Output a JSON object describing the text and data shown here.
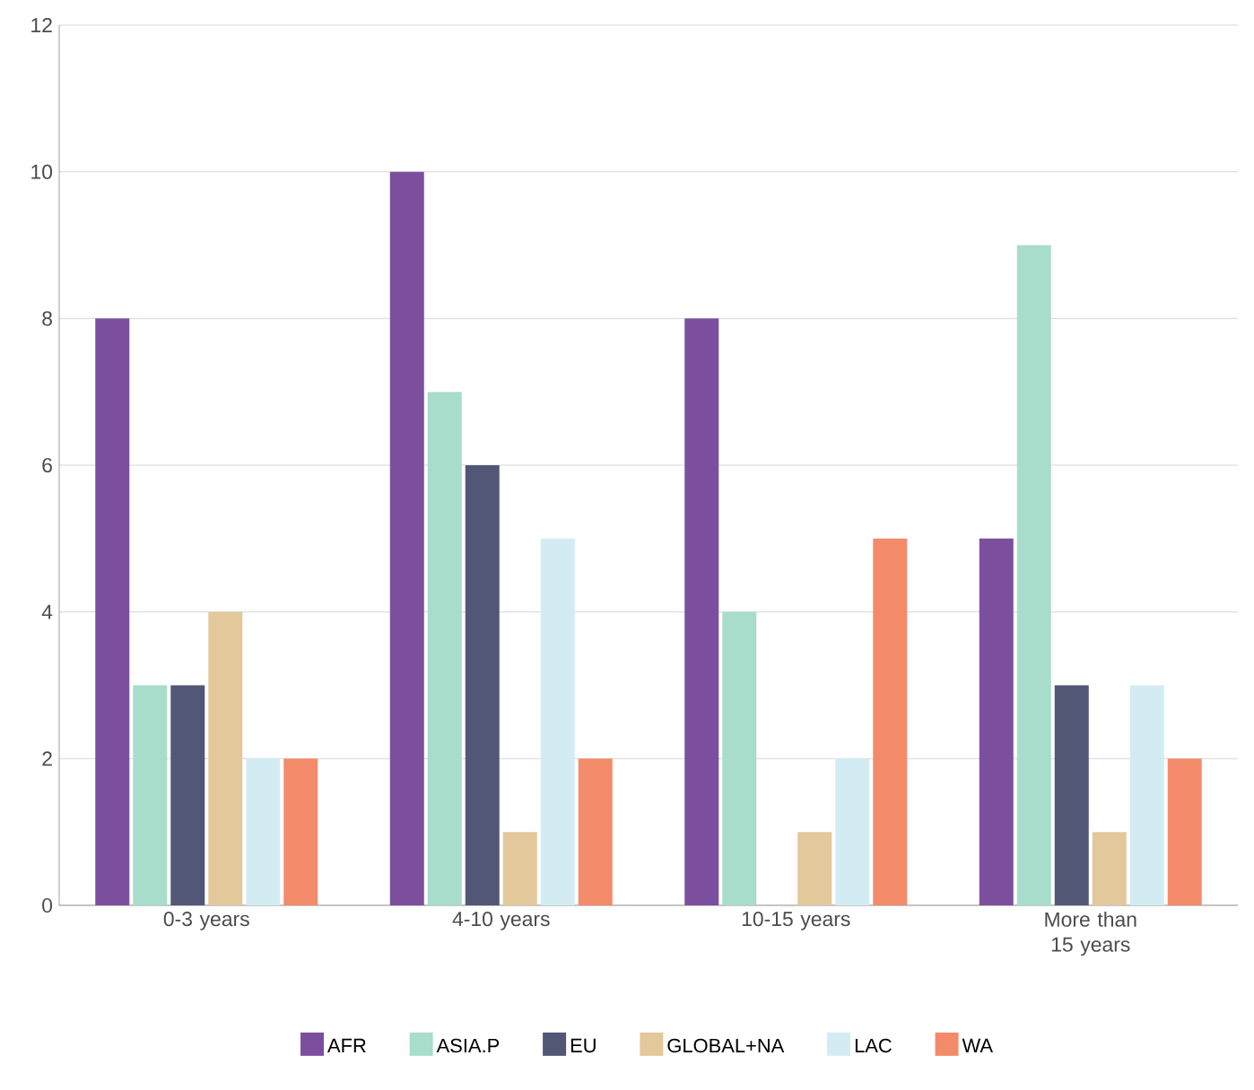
{
  "chart_data": {
    "type": "bar",
    "categories": [
      "0-3 years",
      "4-10 years",
      "10-15 years",
      "More than 15 years"
    ],
    "series": [
      {
        "name": "AFR",
        "color": "#7b4f9e",
        "values": [
          8,
          10,
          8,
          5
        ]
      },
      {
        "name": "ASIA.P",
        "color": "#a8dccb",
        "values": [
          3,
          7,
          4,
          9
        ]
      },
      {
        "name": "EU",
        "color": "#525775",
        "values": [
          3,
          6,
          null,
          3
        ]
      },
      {
        "name": "GLOBAL+NA",
        "color": "#e3c89b",
        "values": [
          4,
          1,
          1,
          1
        ]
      },
      {
        "name": "LAC",
        "color": "#d3ecf3",
        "values": [
          2,
          5,
          2,
          3
        ]
      },
      {
        "name": "WA",
        "color": "#f38b6b",
        "values": [
          2,
          2,
          5,
          2
        ]
      }
    ],
    "ylim": [
      0,
      12
    ],
    "yticks": [
      0,
      2,
      4,
      6,
      8,
      10,
      12
    ],
    "grid": "y",
    "legend": "bottom"
  }
}
